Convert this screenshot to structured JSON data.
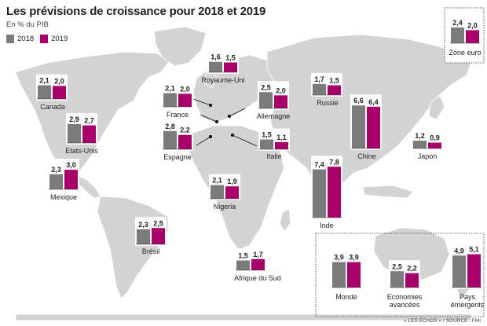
{
  "title": "Les prévisions de croissance pour 2018 et 2019",
  "subtitle": "En % du PIB",
  "legend": [
    {
      "label": "2018",
      "color": "#7b7b7b"
    },
    {
      "label": "2019",
      "color": "#a8006b"
    }
  ],
  "source": "« LES ÉCHOS » / SOURCE : FMI",
  "colors": {
    "bar2018": "#7b7b7b",
    "bar2019": "#a8006b",
    "land": "#d3d3d3",
    "ocean": "#ffffff",
    "frame": "#333333"
  },
  "chart_data": {
    "type": "bar",
    "title": "Les prévisions de croissance pour 2018 et 2019",
    "subtitle": "En % du PIB",
    "series_names": [
      "2018",
      "2019"
    ],
    "categories": [
      "Canada",
      "Etats-Unis",
      "Mexique",
      "Brésil",
      "France",
      "Espagne",
      "Royaume-Uni",
      "Allemagne",
      "Italie",
      "Nigeria",
      "Afrique du Sud",
      "Russie",
      "Inde",
      "Chine",
      "Japon",
      "Zone euro",
      "Monde",
      "Economies avancées",
      "Pays émergents"
    ],
    "series": [
      {
        "name": "2018",
        "values": [
          2.1,
          2.9,
          2.3,
          2.3,
          2.1,
          2.8,
          1.6,
          2.5,
          1.5,
          2.1,
          1.5,
          1.7,
          7.4,
          6.6,
          1.2,
          2.4,
          3.9,
          2.5,
          4.9
        ]
      },
      {
        "name": "2019",
        "values": [
          2.0,
          2.7,
          3.0,
          2.5,
          2.0,
          2.2,
          1.5,
          2.0,
          1.1,
          1.9,
          1.7,
          1.5,
          7.8,
          6.4,
          0.9,
          2.0,
          3.9,
          2.2,
          5.1
        ]
      }
    ],
    "value_labels": {
      "2018": [
        "2,1",
        "2,9",
        "2,3",
        "2,3",
        "2,1",
        "2,8",
        "1,6",
        "2,5",
        "1,5",
        "2,1",
        "1,5",
        "1,7",
        "7,4",
        "6,6",
        "1,2",
        "2,4",
        "3,9",
        "2,5",
        "4,9"
      ],
      "2019": [
        "2,0",
        "2,7",
        "3,0",
        "2,5",
        "2,0",
        "2,2",
        "1,5",
        "2,0",
        "1,1",
        "1,9",
        "1,7",
        "1,5",
        "7,8",
        "6,4",
        "0,9",
        "2,0",
        "3,9",
        "2,2",
        "5,1"
      ]
    },
    "category_labels": [
      "Canada",
      "Etats-Unis",
      "Mexique",
      "Brésil",
      "France",
      "Espagne",
      "Royaume-Uni",
      "Allemagne",
      "Italie",
      "Nigeria",
      "Afrique du Sud",
      "Russie",
      "Inde",
      "Chine",
      "Japon",
      "Zone euro",
      "Monde",
      "Economies avancées",
      "Pays émergents"
    ]
  }
}
